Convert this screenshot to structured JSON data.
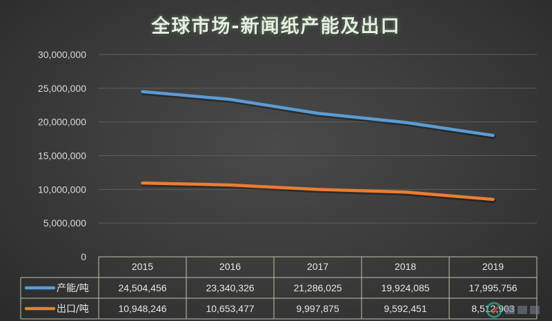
{
  "chart_data": {
    "type": "line",
    "title": "全球市场-新闻纸产能及出口",
    "categories": [
      "2015",
      "2016",
      "2017",
      "2018",
      "2019"
    ],
    "series": [
      {
        "name": "产能/吨",
        "color": "#5b9bd5",
        "values": [
          24504456,
          23340326,
          21286025,
          19924085,
          17995756
        ],
        "labels": [
          "24,504,456",
          "23,340,326",
          "21,286,025",
          "19,924,085",
          "17,995,756"
        ]
      },
      {
        "name": "出口/吨",
        "color": "#ed7d31",
        "values": [
          10948246,
          10653477,
          9997875,
          9592451,
          8512903
        ],
        "labels": [
          "10,948,246",
          "10,653,477",
          "9,997,875",
          "9,592,451",
          "8,512,903"
        ]
      }
    ],
    "ylim": [
      0,
      30000000
    ],
    "yticks": [
      0,
      5000000,
      10000000,
      15000000,
      20000000,
      25000000,
      30000000
    ],
    "ytick_labels": [
      "0",
      "5,000,000",
      "10,000,000",
      "15,000,000",
      "20,000,000",
      "25,000,000",
      "30,000,000"
    ],
    "grid": true,
    "data_table": true,
    "background_color": "#3c3c3c",
    "grid_color": "#5e5e5e",
    "table_border_color": "#b8c8ac"
  }
}
